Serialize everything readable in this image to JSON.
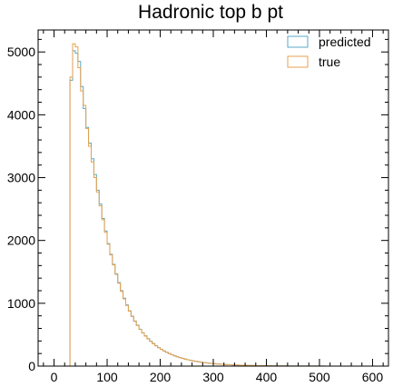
{
  "chart_data": {
    "type": "histogram",
    "title": "Hadronic top b pt",
    "xlabel": "",
    "ylabel": "",
    "xlim": [
      -30,
      630
    ],
    "ylim": [
      0,
      5350
    ],
    "x_ticks": [
      0,
      100,
      200,
      300,
      400,
      500,
      600
    ],
    "y_ticks": [
      0,
      1000,
      2000,
      3000,
      4000,
      5000
    ],
    "legend_position": "top-right",
    "bin_start": 30,
    "bin_width": 5,
    "series": [
      {
        "name": "predicted",
        "color": "#5aa9c8",
        "values": [
          4550,
          5020,
          4980,
          4850,
          4450,
          4100,
          3800,
          3550,
          3300,
          3050,
          2800,
          2580,
          2350,
          2150,
          1950,
          1780,
          1620,
          1470,
          1330,
          1200,
          1080,
          975,
          880,
          795,
          718,
          650,
          588,
          532,
          482,
          437,
          396,
          359,
          325,
          295,
          267,
          242,
          220,
          200,
          181,
          165,
          150,
          136,
          124,
          112,
          102,
          93,
          84,
          76,
          69,
          63,
          57,
          52,
          47,
          43,
          39,
          35,
          32,
          29,
          26,
          24,
          22,
          20,
          18,
          16,
          15,
          13,
          12,
          11,
          10,
          9,
          8,
          7,
          7,
          6,
          5,
          5,
          4,
          4,
          4,
          3,
          3,
          3,
          2,
          2,
          2,
          2,
          2,
          1,
          1,
          1,
          1,
          1,
          1,
          1,
          1,
          1
        ]
      },
      {
        "name": "true",
        "color": "#e6a24f",
        "values": [
          4600,
          5130,
          5080,
          4750,
          4380,
          4150,
          3780,
          3500,
          3250,
          3000,
          2770,
          2550,
          2330,
          2130,
          1940,
          1770,
          1610,
          1460,
          1320,
          1190,
          1070,
          965,
          875,
          790,
          712,
          645,
          583,
          528,
          478,
          433,
          392,
          355,
          322,
          292,
          265,
          240,
          218,
          198,
          180,
          163,
          148,
          135,
          123,
          111,
          101,
          92,
          83,
          75,
          68,
          62,
          56,
          51,
          46,
          42,
          38,
          35,
          31,
          28,
          26,
          23,
          21,
          19,
          18,
          16,
          14,
          13,
          12,
          11,
          10,
          9,
          8,
          7,
          6,
          6,
          5,
          5,
          4,
          4,
          3,
          3,
          3,
          3,
          2,
          2,
          2,
          2,
          1,
          1,
          1,
          1,
          1,
          1,
          1,
          1,
          1,
          1
        ]
      }
    ]
  }
}
